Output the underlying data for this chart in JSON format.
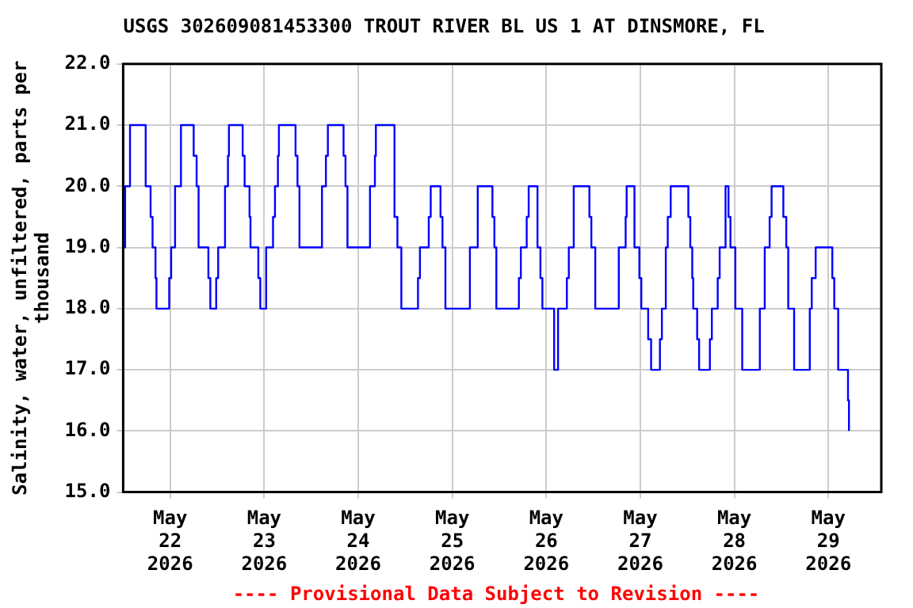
{
  "chart_data": {
    "type": "step",
    "title": "USGS 302609081453300 TROUT RIVER BL US 1 AT DINSMORE, FL",
    "ylabel": "Salinity, water, unfiltered, parts per thousand",
    "annotations": [
      "---- Provisional Data Subject to Revision ----"
    ],
    "x": [
      "2026-05-21T12:15",
      "2026-05-21T12:30",
      "2026-05-21T13:45",
      "2026-05-21T17:45",
      "2026-05-21T19:00",
      "2026-05-21T19:30",
      "2026-05-21T20:15",
      "2026-05-21T20:30",
      "2026-05-21T23:45",
      "2026-05-22T00:15",
      "2026-05-22T01:15",
      "2026-05-22T02:45",
      "2026-05-22T06:00",
      "2026-05-22T06:45",
      "2026-05-22T07:15",
      "2026-05-22T09:45",
      "2026-05-22T10:15",
      "2026-05-22T11:45",
      "2026-05-22T12:15",
      "2026-05-22T14:00",
      "2026-05-22T14:45",
      "2026-05-22T15:00",
      "2026-05-22T18:30",
      "2026-05-22T19:00",
      "2026-05-22T20:15",
      "2026-05-22T20:30",
      "2026-05-22T22:30",
      "2026-05-22T23:00",
      "2026-05-23T00:30",
      "2026-05-23T02:15",
      "2026-05-23T02:45",
      "2026-05-23T03:30",
      "2026-05-23T03:45",
      "2026-05-23T08:00",
      "2026-05-23T08:30",
      "2026-05-23T09:00",
      "2026-05-23T14:45",
      "2026-05-23T15:45",
      "2026-05-23T16:15",
      "2026-05-23T20:15",
      "2026-05-23T20:45",
      "2026-05-23T21:15",
      "2026-05-24T03:00",
      "2026-05-24T04:15",
      "2026-05-24T04:30",
      "2026-05-24T09:15",
      "2026-05-24T10:00",
      "2026-05-24T11:00",
      "2026-05-24T15:15",
      "2026-05-24T15:45",
      "2026-05-24T18:00",
      "2026-05-24T18:30",
      "2026-05-24T21:00",
      "2026-05-24T21:30",
      "2026-05-24T22:15",
      "2026-05-25T04:30",
      "2026-05-25T06:30",
      "2026-05-25T10:15",
      "2026-05-25T10:45",
      "2026-05-25T11:15",
      "2026-05-25T17:00",
      "2026-05-25T17:30",
      "2026-05-25T19:00",
      "2026-05-25T19:30",
      "2026-05-25T21:45",
      "2026-05-25T22:30",
      "2026-05-25T23:00",
      "2026-05-26T02:00",
      "2026-05-26T03:00",
      "2026-05-26T05:15",
      "2026-05-26T05:45",
      "2026-05-26T07:00",
      "2026-05-26T11:00",
      "2026-05-26T11:30",
      "2026-05-26T12:30",
      "2026-05-26T18:30",
      "2026-05-26T20:15",
      "2026-05-26T20:30",
      "2026-05-26T22:30",
      "2026-05-26T23:45",
      "2026-05-27T00:15",
      "2026-05-27T02:00",
      "2026-05-27T02:45",
      "2026-05-27T05:00",
      "2026-05-27T05:30",
      "2026-05-27T06:30",
      "2026-05-27T07:00",
      "2026-05-27T07:45",
      "2026-05-27T12:15",
      "2026-05-27T12:45",
      "2026-05-27T13:15",
      "2026-05-27T13:30",
      "2026-05-27T14:30",
      "2026-05-27T15:00",
      "2026-05-27T17:45",
      "2026-05-27T18:15",
      "2026-05-27T19:45",
      "2026-05-27T20:15",
      "2026-05-27T21:45",
      "2026-05-27T22:30",
      "2026-05-27T23:00",
      "2026-05-28T00:15",
      "2026-05-28T02:00",
      "2026-05-28T06:30",
      "2026-05-28T07:45",
      "2026-05-28T09:00",
      "2026-05-28T09:30",
      "2026-05-28T12:30",
      "2026-05-28T13:15",
      "2026-05-28T13:45",
      "2026-05-28T15:15",
      "2026-05-28T19:15",
      "2026-05-28T19:45",
      "2026-05-28T20:45",
      "2026-05-29T01:00",
      "2026-05-29T01:30",
      "2026-05-29T02:30",
      "2026-05-29T05:00",
      "2026-05-29T05:15"
    ],
    "series": [
      {
        "color": "#0000ff",
        "values": [
          19,
          20,
          21,
          20,
          19.5,
          19,
          18.5,
          18,
          18.5,
          19,
          20,
          21,
          20.5,
          20,
          19,
          18.5,
          18,
          18.5,
          19,
          20,
          20.5,
          21,
          20.5,
          20,
          19.5,
          19,
          18.5,
          18,
          19,
          19.5,
          20,
          20.5,
          21,
          20.5,
          20,
          19,
          20,
          20.5,
          21,
          20.5,
          20,
          19,
          20,
          20.5,
          21,
          19.5,
          19,
          18,
          18.5,
          19,
          19.5,
          20,
          19.5,
          19,
          18,
          19,
          20,
          19.5,
          19,
          18,
          18.5,
          19,
          19.5,
          20,
          19,
          18.5,
          18,
          17,
          18,
          18.5,
          19,
          20,
          19.5,
          19,
          18,
          19,
          19.5,
          20,
          19,
          18.5,
          18,
          17.5,
          17,
          17.5,
          18,
          19,
          19.5,
          20,
          19.5,
          19,
          18.5,
          18,
          17.5,
          17,
          17.5,
          18,
          18.5,
          19,
          20,
          19.5,
          19,
          18,
          17,
          18,
          19,
          19.5,
          20,
          19.5,
          19,
          18,
          17,
          18,
          18.5,
          19,
          18.5,
          18,
          17,
          16.5,
          16
        ]
      }
    ],
    "xlim": [
      "2026-05-21T12:00",
      "2026-05-29T13:30"
    ],
    "xticks": [
      {
        "value": "2026-05-22",
        "label": "May\n22\n2026"
      },
      {
        "value": "2026-05-23",
        "label": "May\n23\n2026"
      },
      {
        "value": "2026-05-24",
        "label": "May\n24\n2026"
      },
      {
        "value": "2026-05-25",
        "label": "May\n25\n2026"
      },
      {
        "value": "2026-05-26",
        "label": "May\n26\n2026"
      },
      {
        "value": "2026-05-27",
        "label": "May\n27\n2026"
      },
      {
        "value": "2026-05-28",
        "label": "May\n28\n2026"
      },
      {
        "value": "2026-05-29",
        "label": "May\n29\n2026"
      }
    ],
    "ylim": [
      15,
      22
    ],
    "yticks": [
      {
        "value": 15,
        "label": "15.0"
      },
      {
        "value": 16,
        "label": "16.0"
      },
      {
        "value": 17,
        "label": "17.0"
      },
      {
        "value": 18,
        "label": "18.0"
      },
      {
        "value": 19,
        "label": "19.0"
      },
      {
        "value": 20,
        "label": "20.0"
      },
      {
        "value": 21,
        "label": "21.0"
      },
      {
        "value": 22,
        "label": "22.0"
      }
    ],
    "grid": true,
    "legend": false
  }
}
